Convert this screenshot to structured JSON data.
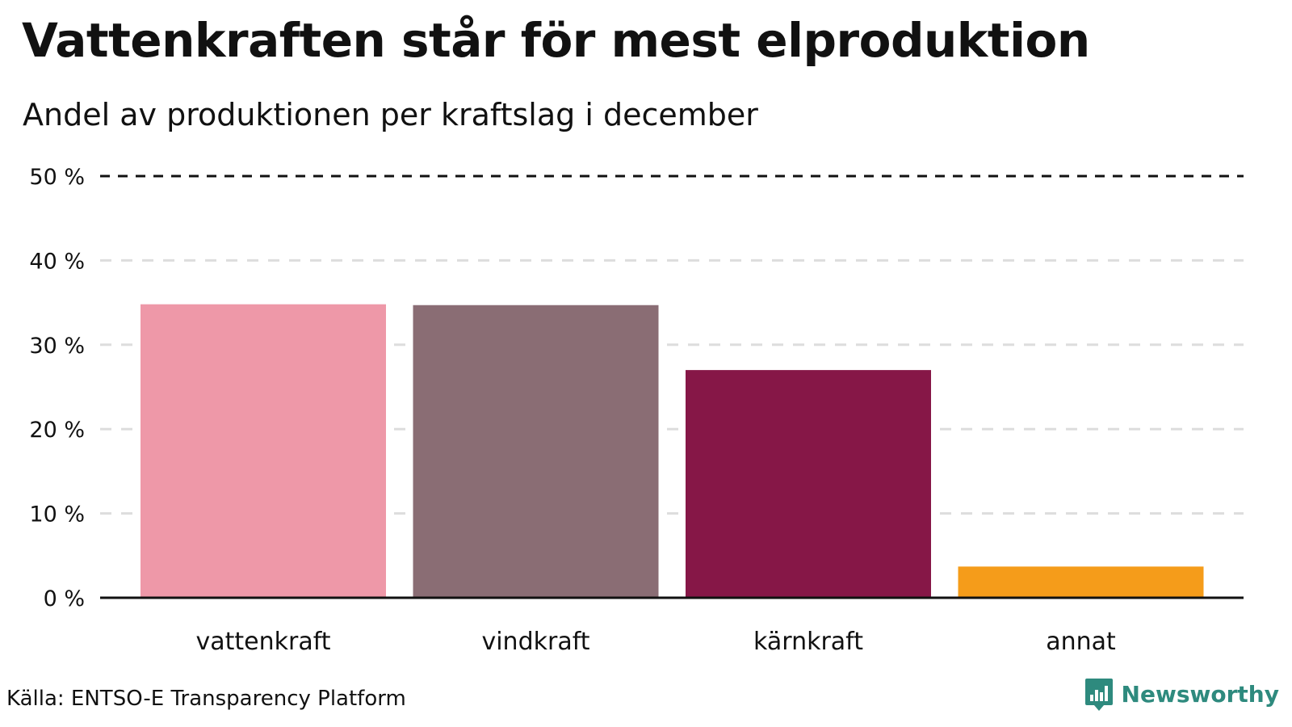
{
  "title": "Vattenkraften står för mest elproduktion",
  "subtitle": "Andel av produktionen per kraftslag i december",
  "source": "Källa: ENTSO-E Transparency Platform",
  "brand": {
    "name": "Newsworthy",
    "logo_icon": "bar-chart-pin-icon",
    "color": "#2e8a7e"
  },
  "chart_data": {
    "type": "bar",
    "categories": [
      "vattenkraft",
      "vindkraft",
      "kärnkraft",
      "annat"
    ],
    "values": [
      34.8,
      34.7,
      27.0,
      3.7
    ],
    "colors": [
      "#ee98a8",
      "#8a6d74",
      "#861747",
      "#f59c1a"
    ],
    "ylim": [
      0,
      50
    ],
    "yticks": [
      0,
      10,
      20,
      30,
      40,
      50
    ],
    "ytick_labels": [
      "0 %",
      "10 %",
      "20 %",
      "30 %",
      "40 %",
      "50 %"
    ],
    "reference_line": 50,
    "grid": true,
    "xlabel": "",
    "ylabel": ""
  }
}
